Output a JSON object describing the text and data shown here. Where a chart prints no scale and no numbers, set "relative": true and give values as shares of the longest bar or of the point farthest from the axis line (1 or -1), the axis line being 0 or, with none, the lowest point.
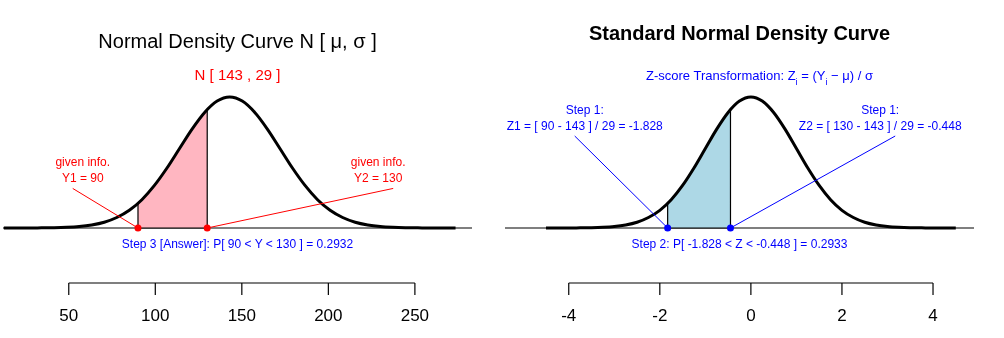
{
  "chart_data": [
    {
      "type": "line",
      "title": "Normal Density Curve N [ μ, σ ]",
      "subtitle": "N [ 143 , 29 ]",
      "relative": true,
      "xlim": [
        12,
        283
      ],
      "xticks": [
        50,
        100,
        150,
        200,
        250
      ],
      "series": [
        {
          "type": "area",
          "color": "#ffb6c1",
          "x": [
            90,
            92.25,
            99.5,
            106.75,
            114,
            121.25,
            128.5,
            130
          ],
          "values": [
            0.188,
            0.216,
            0.325,
            0.458,
            0.607,
            0.755,
            0.882,
            0.904
          ]
        },
        {
          "color": "#000000",
          "x": [
            12.5,
            19.75,
            27,
            34.25,
            41.5,
            48.75,
            56,
            63.25,
            70.5,
            77.75,
            85,
            92.25,
            99.5,
            106.75,
            114,
            121.25,
            128.5,
            135.75,
            143,
            150.25,
            157.5,
            164.75,
            172,
            179.25,
            186.5,
            193.75,
            201,
            208.25,
            215.5,
            222.75,
            230,
            237.25,
            244.5,
            251.75,
            259,
            266.25,
            273.5
          ],
          "values": [
            0,
            0,
            0,
            0.001,
            0.002,
            0.005,
            0.011,
            0.023,
            0.044,
            0.08,
            0.135,
            0.216,
            0.325,
            0.458,
            0.607,
            0.755,
            0.882,
            0.969,
            1,
            0.969,
            0.882,
            0.755,
            0.607,
            0.458,
            0.325,
            0.216,
            0.135,
            0.08,
            0.044,
            0.023,
            0.011,
            0.005,
            0.002,
            0.001,
            0,
            0,
            0
          ]
        },
        {
          "type": "scatter",
          "marker": "circle",
          "color": "#ff0000",
          "x": [
            90,
            130
          ],
          "values": [
            0,
            0
          ]
        }
      ],
      "annotations": [
        {
          "text": "given info.\nY1 = 90",
          "x": 90,
          "y": 0
        },
        {
          "text": "given info.\nY2 = 130",
          "x": 130,
          "y": 0
        },
        "Step 3 [Answer]:   P[ 90 < Y < 130 ] =  0.2932"
      ]
    },
    {
      "type": "line",
      "title": "Standard Normal Density Curve",
      "subtitle": "Z-score Transformation:  Z$_{i}$ = (Y$_{i}$ − μ) / σ",
      "relative": true,
      "xlim": [
        -5.4,
        4.9
      ],
      "xticks": [
        -4,
        -2,
        0,
        2,
        4
      ],
      "series": [
        {
          "type": "area",
          "color": "#add8e6",
          "x": [
            -1.828,
            -1.75,
            -1.5,
            -1.25,
            -1,
            -0.75,
            -0.5,
            -0.448
          ],
          "values": [
            0.188,
            0.216,
            0.325,
            0.458,
            0.607,
            0.755,
            0.882,
            0.904
          ]
        },
        {
          "color": "#000000",
          "x": [
            -4.5,
            -4.25,
            -4,
            -3.75,
            -3.5,
            -3.25,
            -3,
            -2.75,
            -2.5,
            -2.25,
            -2,
            -1.75,
            -1.5,
            -1.25,
            -1,
            -0.75,
            -0.5,
            -0.25,
            0,
            0.25,
            0.5,
            0.75,
            1,
            1.25,
            1.5,
            1.75,
            2,
            2.25,
            2.5,
            2.75,
            3,
            3.25,
            3.5,
            3.75,
            4,
            4.25,
            4.5
          ],
          "values": [
            0,
            0,
            0,
            0.001,
            0.002,
            0.005,
            0.011,
            0.023,
            0.044,
            0.08,
            0.135,
            0.216,
            0.325,
            0.458,
            0.607,
            0.755,
            0.882,
            0.969,
            1,
            0.969,
            0.882,
            0.755,
            0.607,
            0.458,
            0.325,
            0.216,
            0.135,
            0.08,
            0.044,
            0.023,
            0.011,
            0.005,
            0.002,
            0.001,
            0,
            0,
            0
          ]
        },
        {
          "type": "scatter",
          "marker": "circle",
          "color": "#0000ff",
          "x": [
            -1.828,
            -0.448
          ],
          "values": [
            0,
            0
          ]
        }
      ],
      "annotations": [
        {
          "text": "Step 1:\nZ1 = [ 90 - 143 ] / 29 = -1.828",
          "x": -1.828,
          "y": 0
        },
        {
          "text": "Step 1:\nZ2 = [ 130 - 143 ] / 29 = -0.448",
          "x": -0.448,
          "y": 0
        },
        "Step 2:   P[ -1.828 < Z < -0.448 ] =  0.2933"
      ]
    }
  ]
}
